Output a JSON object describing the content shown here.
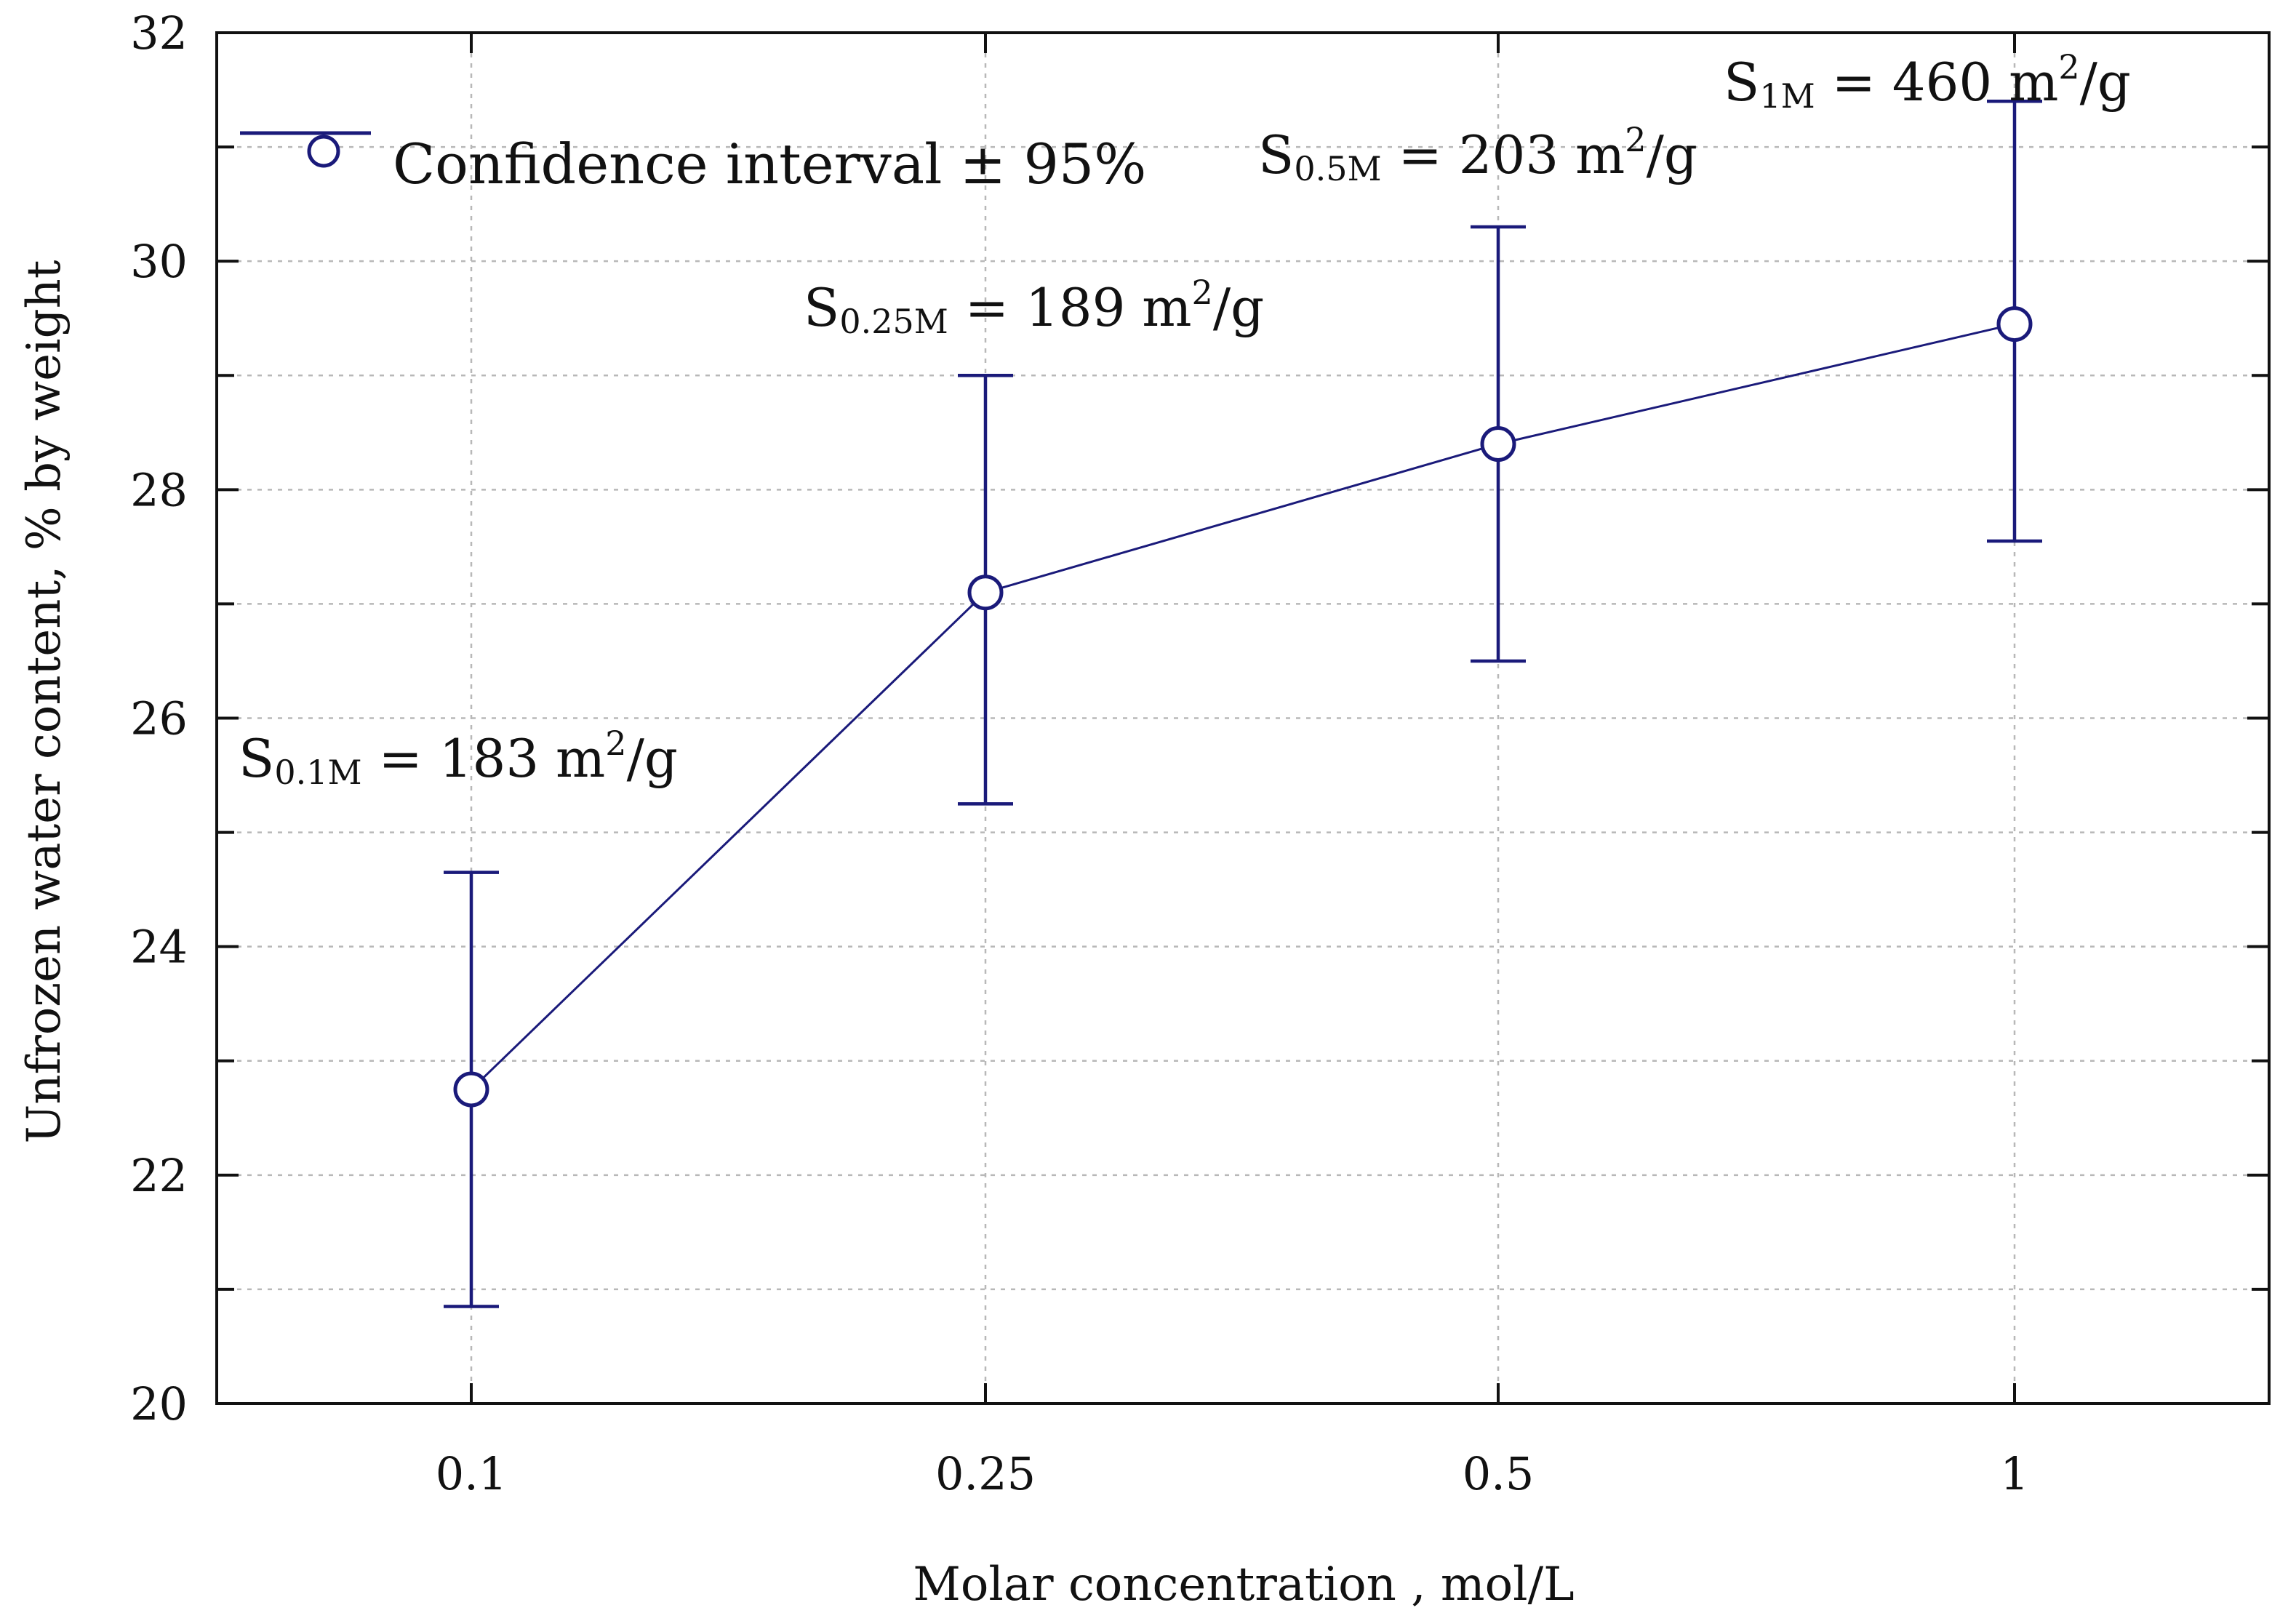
{
  "chart_data": {
    "type": "line",
    "title": "",
    "xlabel": "Molar concentration , mol/L",
    "ylabel": "Unfrozen water content, % by weight",
    "categories": [
      "0.1",
      "0.25",
      "0.5",
      "1"
    ],
    "ylim": [
      20,
      32
    ],
    "y_ticks": [
      "20",
      "22",
      "24",
      "26",
      "28",
      "30",
      "32"
    ],
    "grid": true,
    "legend": {
      "label": "Confidence interval ± 95%",
      "placement": "top-left"
    },
    "series": [
      {
        "name": "Unfrozen water content",
        "values": [
          22.75,
          27.1,
          28.4,
          29.45
        ],
        "ci_lower": [
          20.85,
          25.25,
          26.5,
          27.55
        ],
        "ci_upper": [
          24.65,
          29.0,
          30.3,
          31.4
        ]
      }
    ],
    "annotations": [
      {
        "main": "S",
        "sub": "0.1M",
        "rest": " = 183 m",
        "sup": "2",
        "tail": "/g"
      },
      {
        "main": "S",
        "sub": "0.25M",
        "rest": " = 189 m",
        "sup": "2",
        "tail": "/g"
      },
      {
        "main": "S",
        "sub": "0.5M",
        "rest": " = 203 m",
        "sup": "2",
        "tail": "/g"
      },
      {
        "main": "S",
        "sub": "1M",
        "rest": " =  460 m",
        "sup": "2",
        "tail": "/g"
      }
    ],
    "colors": {
      "series": "#1a1a7a",
      "grid": "#b8b8b8",
      "axis": "#111111"
    }
  }
}
